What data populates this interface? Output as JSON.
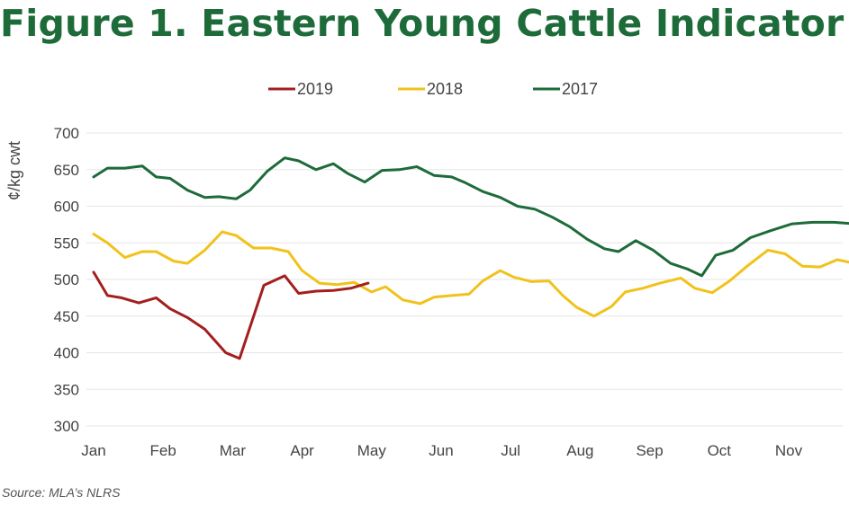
{
  "title": "Figure 1. Eastern Young Cattle Indicator",
  "source": "Source: MLA’s NLRS",
  "colors": {
    "s2019": "#a31f1f",
    "s2018": "#f1c21b",
    "s2017": "#1e6b3a",
    "title": "#1e6b3a",
    "grid": "#e6e6e6"
  },
  "chart_data": {
    "type": "line",
    "title": "Figure 1. Eastern Young Cattle Indicator",
    "ylabel": "¢/kg cwt",
    "xlabel": "",
    "ylim": [
      300,
      700
    ],
    "yticks": [
      300,
      350,
      400,
      450,
      500,
      550,
      600,
      650,
      700
    ],
    "xlim": [
      0,
      11.35
    ],
    "month_ticks": [
      "Jan",
      "Feb",
      "Mar",
      "Apr",
      "May",
      "Jun",
      "Jul",
      "Aug",
      "Sep",
      "Oct",
      "Nov"
    ],
    "grid": true,
    "legend_position": "top-center",
    "series": [
      {
        "name": "2019",
        "color": "#a31f1f",
        "x": [
          0,
          0.2,
          0.4,
          0.65,
          0.9,
          1.1,
          1.35,
          1.6,
          1.9,
          2.1,
          2.45,
          2.75,
          2.95,
          3.2,
          3.45,
          3.7,
          3.95
        ],
        "y": [
          510,
          478,
          475,
          468,
          475,
          460,
          448,
          432,
          400,
          392,
          492,
          505,
          481,
          484,
          485,
          488,
          495
        ]
      },
      {
        "name": "2018",
        "color": "#f1c21b",
        "x": [
          0,
          0.2,
          0.45,
          0.7,
          0.9,
          1.15,
          1.35,
          1.6,
          1.85,
          2.05,
          2.3,
          2.55,
          2.8,
          3.0,
          3.25,
          3.5,
          3.75,
          4.0,
          4.2,
          4.45,
          4.7,
          4.9,
          5.15,
          5.4,
          5.6,
          5.85,
          6.05,
          6.3,
          6.55,
          6.75,
          6.95,
          7.2,
          7.45,
          7.65,
          7.9,
          8.15,
          8.45,
          8.65,
          8.9,
          9.15,
          9.4,
          9.7,
          9.95,
          10.2,
          10.45,
          10.7,
          10.95,
          11.2,
          11.35
        ],
        "y": [
          562,
          550,
          530,
          538,
          538,
          525,
          522,
          540,
          565,
          560,
          543,
          543,
          538,
          512,
          495,
          493,
          496,
          483,
          490,
          472,
          467,
          476,
          478,
          480,
          498,
          512,
          503,
          497,
          498,
          478,
          462,
          450,
          463,
          483,
          488,
          495,
          502,
          488,
          482,
          498,
          518,
          540,
          535,
          518,
          517,
          527,
          522,
          515,
          513
        ]
      },
      {
        "name": "2017",
        "color": "#1e6b3a",
        "x": [
          0,
          0.2,
          0.45,
          0.7,
          0.9,
          1.1,
          1.35,
          1.6,
          1.8,
          2.05,
          2.25,
          2.5,
          2.75,
          2.95,
          3.2,
          3.45,
          3.65,
          3.9,
          4.15,
          4.4,
          4.65,
          4.9,
          5.15,
          5.35,
          5.6,
          5.85,
          6.1,
          6.35,
          6.6,
          6.85,
          7.1,
          7.35,
          7.55,
          7.8,
          8.05,
          8.3,
          8.55,
          8.75,
          8.95,
          9.2,
          9.45,
          9.75,
          10.05,
          10.35,
          10.65,
          10.95,
          11.15,
          11.35
        ],
        "y": [
          640,
          652,
          652,
          655,
          640,
          638,
          622,
          612,
          613,
          610,
          622,
          648,
          666,
          662,
          650,
          658,
          645,
          633,
          649,
          650,
          654,
          642,
          640,
          632,
          620,
          612,
          600,
          596,
          585,
          572,
          555,
          542,
          538,
          553,
          540,
          522,
          514,
          505,
          533,
          540,
          557,
          567,
          576,
          578,
          578,
          576,
          578,
          578
        ]
      }
    ]
  }
}
